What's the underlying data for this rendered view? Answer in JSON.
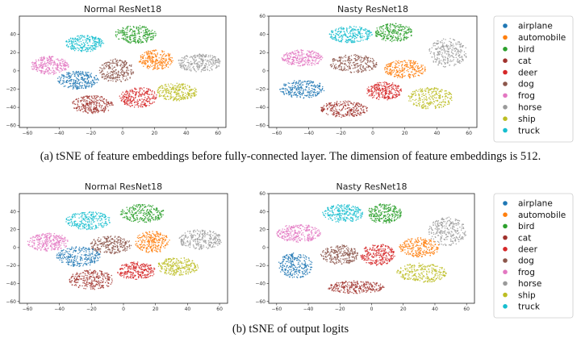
{
  "colors": {
    "airplane": "#1f77b4",
    "automobile": "#ff7f0e",
    "bird": "#2ca02c",
    "cat": "#a0322d",
    "deer": "#d62728",
    "dog": "#8c564b",
    "frog": "#e377c2",
    "horse": "#9a9a9a",
    "ship": "#bcbd22",
    "truck": "#17becf"
  },
  "captions": {
    "a": "(a) tSNE of feature embeddings before fully-connected layer. The dimension of feature embeddings is 512.",
    "b": "(b) tSNE of output logits"
  },
  "chart_data": [
    {
      "type": "scatter",
      "title": "Normal ResNet18",
      "xlim": [
        -65,
        65
      ],
      "ylim": [
        -62,
        60
      ],
      "xticks": [
        -60,
        -40,
        -20,
        0,
        20,
        40,
        60
      ],
      "yticks": [
        -60,
        -40,
        -20,
        0,
        20,
        40
      ],
      "legend": "none",
      "clusters": [
        {
          "label": "truck",
          "cx": -24,
          "cy": 30,
          "rx": 12,
          "ry": 9
        },
        {
          "label": "bird",
          "cx": 8,
          "cy": 40,
          "rx": 13,
          "ry": 10
        },
        {
          "label": "frog",
          "cx": -46,
          "cy": 6,
          "rx": 12,
          "ry": 10
        },
        {
          "label": "dog",
          "cx": -4,
          "cy": 0,
          "rx": 11,
          "ry": 13
        },
        {
          "label": "automobile",
          "cx": 21,
          "cy": 12,
          "rx": 11,
          "ry": 11
        },
        {
          "label": "horse",
          "cx": 48,
          "cy": 9,
          "rx": 14,
          "ry": 10
        },
        {
          "label": "airplane",
          "cx": -28,
          "cy": -10,
          "rx": 13,
          "ry": 10
        },
        {
          "label": "ship",
          "cx": 34,
          "cy": -23,
          "rx": 13,
          "ry": 10
        },
        {
          "label": "deer",
          "cx": 10,
          "cy": -29,
          "rx": 12,
          "ry": 11
        },
        {
          "label": "cat",
          "cx": -19,
          "cy": -37,
          "rx": 13,
          "ry": 10
        }
      ]
    },
    {
      "type": "scatter",
      "title": "Nasty ResNet18",
      "xlim": [
        -65,
        65
      ],
      "ylim": [
        -62,
        60
      ],
      "xticks": [
        -60,
        -40,
        -20,
        0,
        20,
        40,
        60
      ],
      "yticks": [
        -60,
        -40,
        -20,
        0,
        20,
        40,
        60
      ],
      "legend": "right",
      "clusters": [
        {
          "label": "truck",
          "cx": -14,
          "cy": 40,
          "rx": 14,
          "ry": 9
        },
        {
          "label": "bird",
          "cx": 13,
          "cy": 42,
          "rx": 12,
          "ry": 10
        },
        {
          "label": "horse",
          "cx": 47,
          "cy": 20,
          "rx": 12,
          "ry": 16
        },
        {
          "label": "frog",
          "cx": -44,
          "cy": 14,
          "rx": 13,
          "ry": 9
        },
        {
          "label": "dog",
          "cx": -12,
          "cy": 8,
          "rx": 15,
          "ry": 10
        },
        {
          "label": "automobile",
          "cx": 20,
          "cy": 2,
          "rx": 13,
          "ry": 10
        },
        {
          "label": "airplane",
          "cx": -44,
          "cy": -20,
          "rx": 14,
          "ry": 10
        },
        {
          "label": "deer",
          "cx": 7,
          "cy": -22,
          "rx": 11,
          "ry": 10
        },
        {
          "label": "ship",
          "cx": 36,
          "cy": -30,
          "rx": 14,
          "ry": 12
        },
        {
          "label": "cat",
          "cx": -18,
          "cy": -42,
          "rx": 15,
          "ry": 9
        }
      ]
    },
    {
      "type": "scatter",
      "title": "Normal ResNet18",
      "xlim": [
        -65,
        65
      ],
      "ylim": [
        -62,
        60
      ],
      "xticks": [
        -60,
        -40,
        -20,
        0,
        20,
        40,
        60
      ],
      "yticks": [
        -60,
        -40,
        -20,
        0,
        20,
        40
      ],
      "legend": "none",
      "clusters": [
        {
          "label": "truck",
          "cx": -22,
          "cy": 30,
          "rx": 14,
          "ry": 10
        },
        {
          "label": "bird",
          "cx": 12,
          "cy": 38,
          "rx": 14,
          "ry": 10
        },
        {
          "label": "frog",
          "cx": -47,
          "cy": 6,
          "rx": 13,
          "ry": 10
        },
        {
          "label": "dog",
          "cx": -8,
          "cy": 3,
          "rx": 13,
          "ry": 10
        },
        {
          "label": "automobile",
          "cx": 18,
          "cy": 6,
          "rx": 11,
          "ry": 12
        },
        {
          "label": "horse",
          "cx": 48,
          "cy": 9,
          "rx": 14,
          "ry": 11
        },
        {
          "label": "airplane",
          "cx": -28,
          "cy": -10,
          "rx": 14,
          "ry": 11
        },
        {
          "label": "ship",
          "cx": 34,
          "cy": -21,
          "rx": 13,
          "ry": 10
        },
        {
          "label": "deer",
          "cx": 8,
          "cy": -26,
          "rx": 12,
          "ry": 10
        },
        {
          "label": "cat",
          "cx": -20,
          "cy": -36,
          "rx": 14,
          "ry": 11
        }
      ]
    },
    {
      "type": "scatter",
      "title": "Nasty ResNet18",
      "xlim": [
        -65,
        65
      ],
      "ylim": [
        -62,
        60
      ],
      "xticks": [
        -60,
        -40,
        -20,
        0,
        20,
        40,
        60
      ],
      "yticks": [
        -60,
        -40,
        -20,
        0,
        20,
        40,
        60
      ],
      "legend": "right",
      "clusters": [
        {
          "label": "truck",
          "cx": -18,
          "cy": 38,
          "rx": 13,
          "ry": 10
        },
        {
          "label": "bird",
          "cx": 8,
          "cy": 38,
          "rx": 11,
          "ry": 11
        },
        {
          "label": "horse",
          "cx": 48,
          "cy": 18,
          "rx": 12,
          "ry": 16
        },
        {
          "label": "frog",
          "cx": -46,
          "cy": 16,
          "rx": 14,
          "ry": 10
        },
        {
          "label": "dog",
          "cx": -20,
          "cy": -8,
          "rx": 12,
          "ry": 11
        },
        {
          "label": "automobile",
          "cx": 30,
          "cy": 0,
          "rx": 13,
          "ry": 11
        },
        {
          "label": "deer",
          "cx": 4,
          "cy": -8,
          "rx": 11,
          "ry": 12
        },
        {
          "label": "airplane",
          "cx": -48,
          "cy": -20,
          "rx": 11,
          "ry": 14
        },
        {
          "label": "ship",
          "cx": 32,
          "cy": -28,
          "rx": 16,
          "ry": 11
        },
        {
          "label": "cat",
          "cx": -10,
          "cy": -44,
          "rx": 18,
          "ry": 7
        }
      ]
    }
  ],
  "legend_labels": [
    "airplane",
    "automobile",
    "bird",
    "cat",
    "deer",
    "dog",
    "frog",
    "horse",
    "ship",
    "truck"
  ]
}
